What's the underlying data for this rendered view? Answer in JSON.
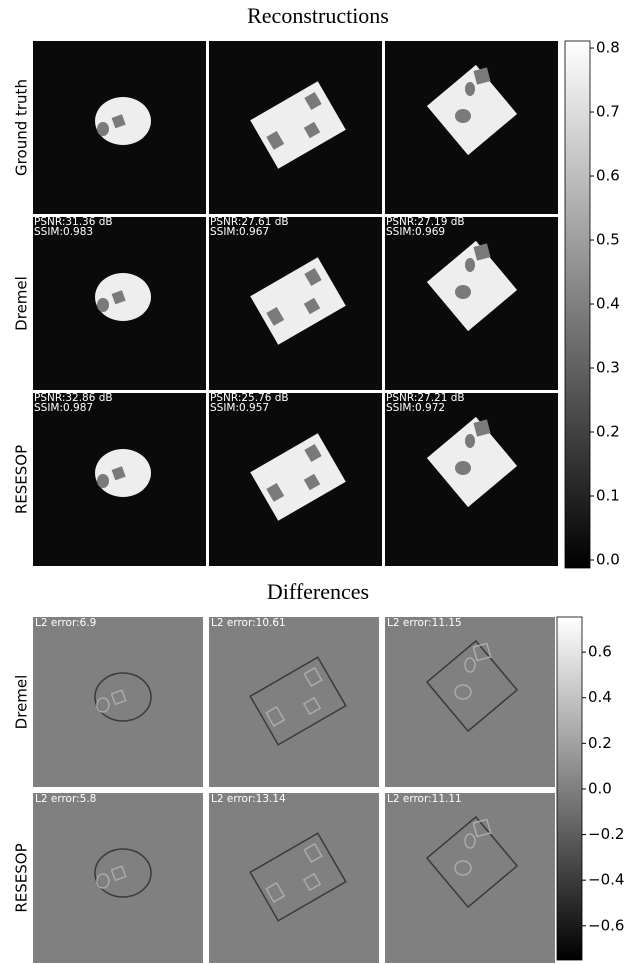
{
  "reconstructions": {
    "title": "Reconstructions",
    "row_labels": [
      "Ground truth",
      "Dremel",
      "RESESOP"
    ],
    "metrics": [
      [
        {
          "psnr": "PSNR:31.36 dB",
          "ssim": "SSIM:0.983"
        },
        {
          "psnr": "PSNR:27.61 dB",
          "ssim": "SSIM:0.967"
        },
        {
          "psnr": "PSNR:27.19 dB",
          "ssim": "SSIM:0.969"
        }
      ],
      [
        {
          "psnr": "PSNR:32.86 dB",
          "ssim": "SSIM:0.987"
        },
        {
          "psnr": "PSNR:25.76 dB",
          "ssim": "SSIM:0.957"
        },
        {
          "psnr": "PSNR:27.21 dB",
          "ssim": "SSIM:0.972"
        }
      ]
    ],
    "colorbar": {
      "lim": [
        -0.0125,
        0.811
      ],
      "ticks": [
        {
          "value": 0,
          "label": "0.0"
        },
        0.1,
        0.2,
        0.3,
        0.4,
        0.5,
        0.6,
        0.7,
        0.8
      ]
    }
  },
  "differences": {
    "title": "Differences",
    "row_labels": [
      "Dremel",
      "RESESOP"
    ],
    "errors": [
      [
        "L2 error:6.9",
        "L2 error:10.61",
        "L2 error:11.15"
      ],
      [
        "L2 error:5.8",
        "L2 error:13.14",
        "L2 error:11.11"
      ]
    ],
    "colorbar": {
      "lim": [
        -0.75,
        0.754
      ],
      "ticks": [
        {
          "value": -0.6,
          "label": "−0.6"
        },
        {
          "value": -0.4,
          "label": "−0.4"
        },
        {
          "value": -0.2,
          "label": "−0.2"
        },
        {
          "value": 0,
          "label": "0.0"
        },
        0.2,
        0.4,
        0.6
      ]
    }
  }
}
